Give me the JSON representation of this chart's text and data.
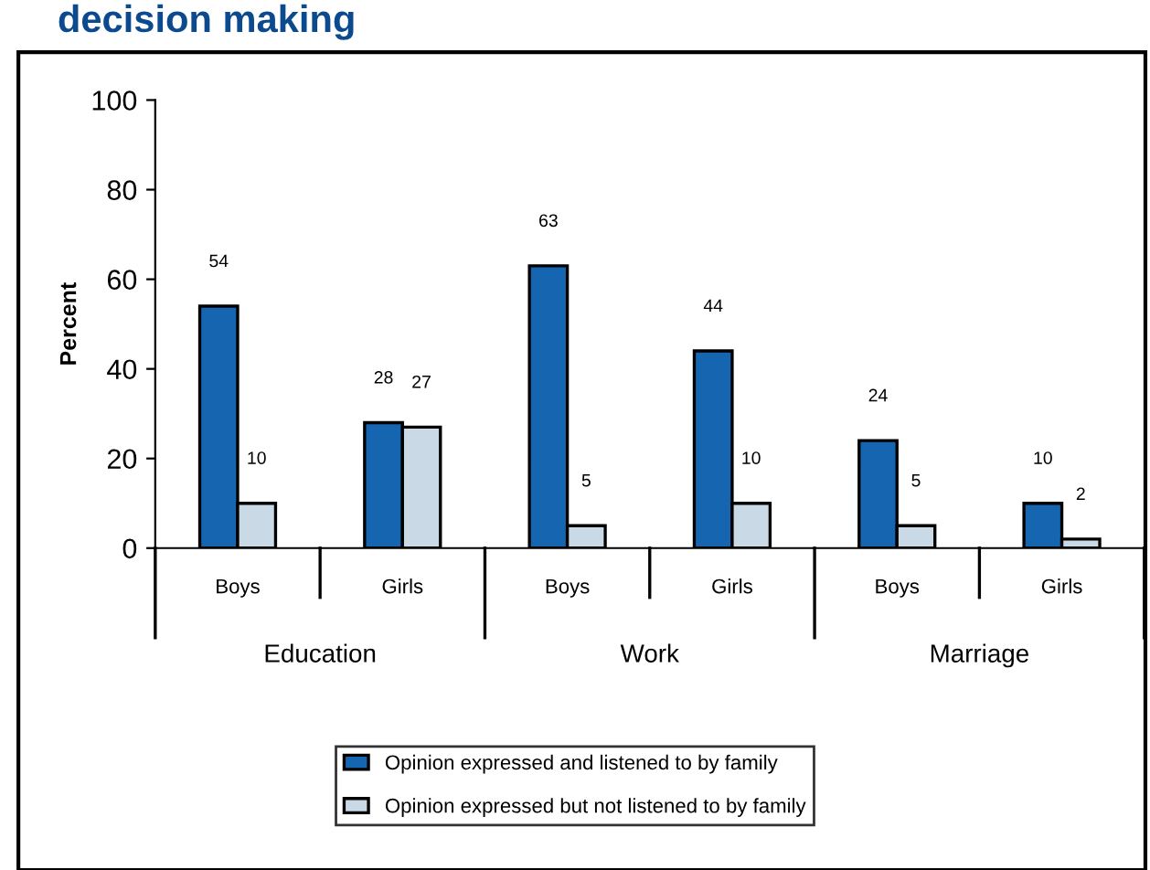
{
  "chart_data": {
    "type": "bar",
    "title": "decision making",
    "ylabel": "Percent",
    "categories": [
      "Boys",
      "Girls",
      "Boys",
      "Girls",
      "Boys",
      "Girls"
    ],
    "series": [
      {
        "name": "Opinion expressed and listened to by family",
        "color": "#1565b0",
        "values": [
          54,
          28,
          63,
          44,
          24,
          10
        ]
      },
      {
        "name": "Opinion expressed but not listened to by family",
        "color": "#c9d9e6",
        "values": [
          10,
          27,
          5,
          10,
          5,
          2
        ]
      }
    ],
    "annotations": [
      "Education",
      "Work",
      "Marriage"
    ],
    "ylim": [
      0,
      100
    ],
    "yticks": [
      0,
      20,
      40,
      60,
      80,
      100
    ],
    "data_labels": true,
    "grid": false,
    "legend": "bottom"
  }
}
